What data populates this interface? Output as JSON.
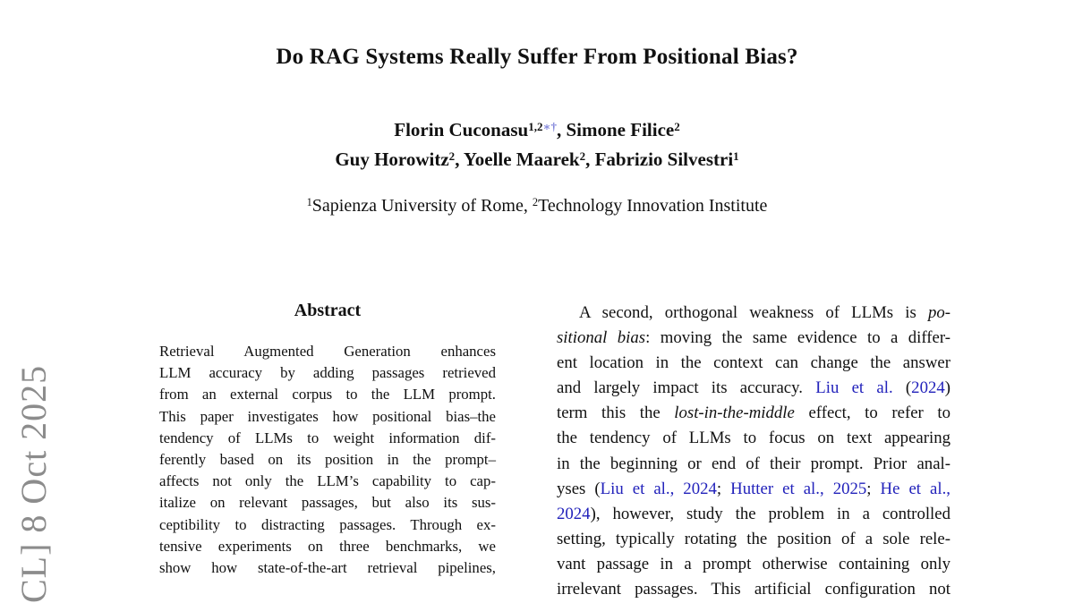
{
  "watermark": {
    "text": "CL] 8 Oct 2025",
    "color": "#8c8c8c"
  },
  "header": {
    "title": "Do RAG Systems Really Suffer From Positional Bias?",
    "author_lines": [
      [
        {
          "t": "Florin Cuconasu",
          "s": "n"
        },
        {
          "t": "1,2",
          "s": "s"
        },
        {
          "t": "∗†",
          "s": "m"
        },
        {
          "t": ", Simone Filice",
          "s": "n"
        },
        {
          "t": "2",
          "s": "s"
        }
      ],
      [
        {
          "t": "Guy Horowitz",
          "s": "n"
        },
        {
          "t": "2",
          "s": "s"
        },
        {
          "t": ", Yoelle Maarek",
          "s": "n"
        },
        {
          "t": "2",
          "s": "s"
        },
        {
          "t": ", Fabrizio Silvestri",
          "s": "n"
        },
        {
          "t": "1",
          "s": "s"
        }
      ]
    ],
    "affiliation_lines": [
      [
        {
          "t": "1",
          "s": "s"
        },
        {
          "t": "Sapienza University of Rome, ",
          "s": "n"
        },
        {
          "t": "2",
          "s": "s"
        },
        {
          "t": "Technology Innovation Institute",
          "s": "n"
        }
      ]
    ]
  },
  "abstract": {
    "heading": "Abstract",
    "lines": [
      "Retrieval Augmented Generation enhances",
      "LLM accuracy by adding passages retrieved",
      "from an external corpus to the LLM prompt.",
      "This paper investigates how positional bias–the",
      "tendency of LLMs to weight information dif-",
      "ferently based on its position in the prompt–",
      "affects not only the LLM’s capability to cap-",
      "italize on relevant passages, but also its sus-",
      "ceptibility to distracting passages. Through ex-",
      "tensive experiments on three benchmarks, we",
      "show how state-of-the-art retrieval pipelines,"
    ]
  },
  "intro": {
    "lines": [
      [
        {
          "t": "A second, orthogonal weakness of LLMs is ",
          "s": "n"
        },
        {
          "t": "po-",
          "s": "i"
        }
      ],
      [
        {
          "t": "sitional bias",
          "s": "i"
        },
        {
          "t": ": moving the same evidence to a differ-",
          "s": "n"
        }
      ],
      [
        {
          "t": "ent location in the context can change the answer",
          "s": "n"
        }
      ],
      [
        {
          "t": "and largely impact its accuracy. ",
          "s": "n"
        },
        {
          "t": "Liu et al.",
          "s": "c"
        },
        {
          "t": " (",
          "s": "n"
        },
        {
          "t": "2024",
          "s": "c"
        },
        {
          "t": ")",
          "s": "n"
        }
      ],
      [
        {
          "t": "term this the ",
          "s": "n"
        },
        {
          "t": "lost-in-the-middle",
          "s": "i"
        },
        {
          "t": " effect, to refer to",
          "s": "n"
        }
      ],
      [
        {
          "t": "the tendency of LLMs to focus on text appearing",
          "s": "n"
        }
      ],
      [
        {
          "t": "in the beginning or end of their prompt. Prior anal-",
          "s": "n"
        }
      ],
      [
        {
          "t": "yses (",
          "s": "n"
        },
        {
          "t": "Liu et al., 2024",
          "s": "c"
        },
        {
          "t": "; ",
          "s": "n"
        },
        {
          "t": "Hutter et al., 2025",
          "s": "c"
        },
        {
          "t": "; ",
          "s": "n"
        },
        {
          "t": "He et al.,",
          "s": "c"
        }
      ],
      [
        {
          "t": "2024",
          "s": "c"
        },
        {
          "t": "), however, study the problem in a controlled",
          "s": "n"
        }
      ],
      [
        {
          "t": "setting, typically rotating the position of a sole rele-",
          "s": "n"
        }
      ],
      [
        {
          "t": "vant passage in a prompt otherwise containing only",
          "s": "n"
        }
      ],
      [
        {
          "t": "irrelevant passages. This artificial configuration not",
          "s": "n"
        }
      ]
    ]
  },
  "colors": {
    "citation_link": "#2222bb",
    "footnote_marker": "#7b7fd9",
    "watermark_gray": "#8c8c8c",
    "body_text": "#111111"
  }
}
